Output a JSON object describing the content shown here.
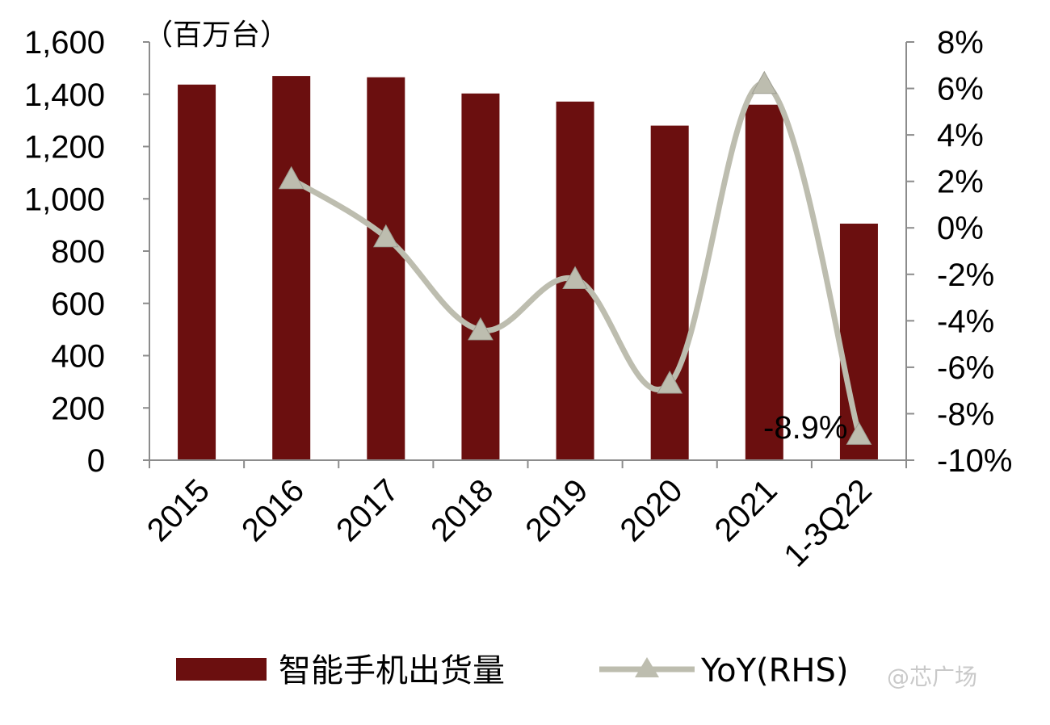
{
  "chart_data": {
    "type": "bar",
    "unit_label": "（百万台）",
    "categories": [
      "2015",
      "2016",
      "2017",
      "2018",
      "2019",
      "2020",
      "2021",
      "1-3Q22"
    ],
    "series": [
      {
        "name": "智能手机出货量",
        "type": "bar",
        "axis": "left",
        "color": "#6B0F0F",
        "values": [
          1437,
          1470,
          1465,
          1403,
          1372,
          1280,
          1360,
          905
        ]
      },
      {
        "name": "YoY(RHS)",
        "type": "line",
        "axis": "right",
        "color": "#BDBDAF",
        "marker": "triangle",
        "values": [
          null,
          2.1,
          -0.4,
          -4.4,
          -2.2,
          -6.7,
          6.2,
          -8.9
        ]
      }
    ],
    "left_axis": {
      "ylim": [
        0,
        1600
      ],
      "ticks": [
        "0",
        "200",
        "400",
        "600",
        "800",
        "1,000",
        "1,200",
        "1,400",
        "1,600"
      ]
    },
    "right_axis": {
      "ylim": [
        -10,
        8
      ],
      "ticks": [
        "-10%",
        "-8%",
        "-6%",
        "-4%",
        "-2%",
        "0%",
        "2%",
        "4%",
        "6%",
        "8%"
      ]
    },
    "annotations": [
      {
        "text": "-8.9%"
      }
    ],
    "legend_position": "bottom",
    "grid": false
  },
  "watermark": "@芯广场"
}
